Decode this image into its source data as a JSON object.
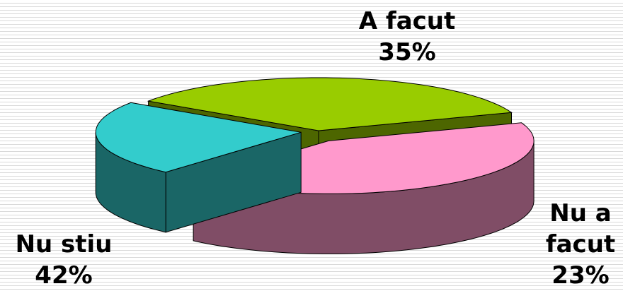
{
  "chart_data": {
    "type": "pie",
    "categories": [
      "A facut",
      "Nu a facut",
      "Nu stiu"
    ],
    "values": [
      35,
      23,
      42
    ],
    "value_labels": [
      "35%",
      "23%",
      "42%"
    ],
    "colors": [
      "#99cc00",
      "#33cccc",
      "#ff99cc"
    ],
    "side_colors": [
      "#4d6600",
      "#1a6666",
      "#804d66"
    ],
    "three_d": true
  }
}
